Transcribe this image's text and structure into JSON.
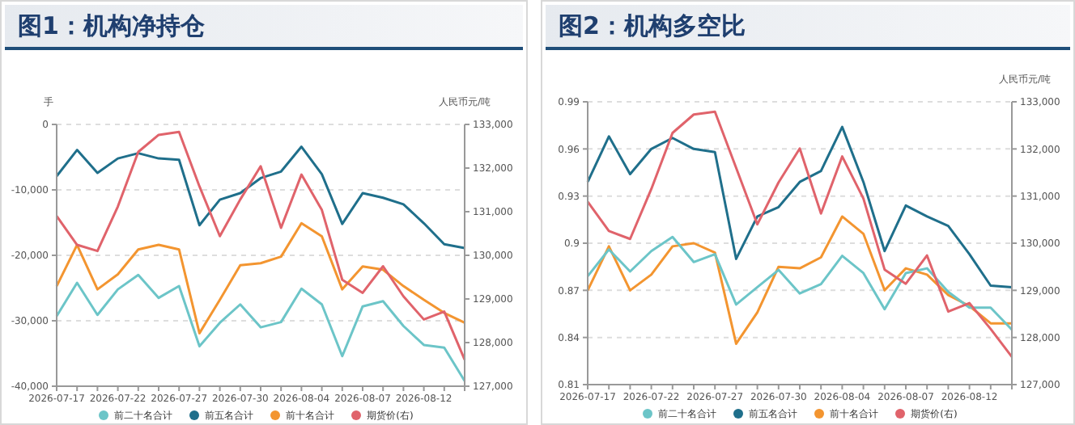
{
  "chart_data": [
    {
      "type": "line",
      "title": "图1：机构净持仓",
      "ylabel": "手",
      "y2label": "人民币元/吨",
      "categories": [
        "2026-07-17",
        null,
        null,
        "2026-07-22",
        null,
        null,
        "2026-07-27",
        null,
        null,
        "2026-07-30",
        null,
        null,
        "2026-08-04",
        null,
        null,
        "2026-08-07",
        null,
        null,
        "2026-08-12",
        null,
        null
      ],
      "series": [
        {
          "name": "前五名合计",
          "color": "#1f6f8b",
          "values": [
            -7900,
            -3900,
            -7400,
            -5200,
            -4400,
            -5200,
            -5400,
            -15400,
            -11500,
            -10500,
            -8200,
            -7200,
            -3400,
            -7600,
            -15200,
            -10500,
            -11200,
            -12200,
            -15100,
            -18300,
            -18900
          ]
        },
        {
          "name": "前十名合计",
          "color": "#f39530",
          "values": [
            -24700,
            -18400,
            -25200,
            -22900,
            -19100,
            -18400,
            -19100,
            -31900,
            -26800,
            -21500,
            -21200,
            -20200,
            -15100,
            -17100,
            -25200,
            -21700,
            -22200,
            -24700,
            -26800,
            -28800,
            -30300
          ]
        },
        {
          "name": "前二十名合计",
          "color": "#6cc5c8",
          "values": [
            -29300,
            -24200,
            -29100,
            -25200,
            -23000,
            -26500,
            -24700,
            -33900,
            -30300,
            -27500,
            -31000,
            -30200,
            -25100,
            -27500,
            -35400,
            -27800,
            -27000,
            -30800,
            -33700,
            -34100,
            -39200
          ]
        },
        {
          "name": "期货价(右)",
          "color": "#e0636b",
          "axis": "y2",
          "values": [
            130900,
            130240,
            130100,
            131120,
            132370,
            132760,
            132830,
            131580,
            130440,
            131280,
            132040,
            130630,
            131850,
            131040,
            129440,
            129140,
            129750,
            129060,
            128530,
            128710,
            127610
          ]
        }
      ],
      "ylim": [
        -40000,
        0
      ],
      "yticks": [
        {
          "value": -40000,
          "label": "-40,000"
        },
        {
          "value": -30000,
          "label": "-30,000"
        },
        {
          "value": -20000,
          "label": "-20,000"
        },
        {
          "value": -10000,
          "label": "-10,000"
        },
        0
      ],
      "y2lim": [
        127000,
        133000
      ],
      "y2ticks": [
        {
          "value": 127000,
          "label": "127,000"
        },
        {
          "value": 128000,
          "label": "128,000"
        },
        {
          "value": 129000,
          "label": "129,000"
        },
        {
          "value": 130000,
          "label": "130,000"
        },
        {
          "value": 131000,
          "label": "131,000"
        },
        {
          "value": 132000,
          "label": "132,000"
        },
        {
          "value": 133000,
          "label": "133,000"
        }
      ],
      "grid": "y",
      "legend": "bottom",
      "marker": "none",
      "line_style": "solid"
    },
    {
      "type": "line",
      "title": "图2：机构多空比",
      "y2label": "人民币元/吨",
      "categories": [
        "2026-07-17",
        null,
        null,
        "2026-07-22",
        null,
        null,
        "2026-07-27",
        null,
        null,
        "2026-07-30",
        null,
        null,
        "2026-08-04",
        null,
        null,
        "2026-08-07",
        null,
        null,
        "2026-08-12",
        null,
        null
      ],
      "series": [
        {
          "name": "前五名合计",
          "color": "#1f6f8b",
          "values": [
            0.939,
            0.968,
            0.944,
            0.96,
            0.967,
            0.96,
            0.958,
            0.89,
            0.917,
            0.923,
            0.939,
            0.946,
            0.974,
            0.939,
            0.895,
            0.924,
            0.917,
            0.911,
            0.893,
            0.873,
            0.872
          ]
        },
        {
          "name": "前十名合计",
          "color": "#f39530",
          "values": [
            0.87,
            0.898,
            0.87,
            0.88,
            0.898,
            0.9,
            0.894,
            0.836,
            0.856,
            0.885,
            0.884,
            0.891,
            0.917,
            0.906,
            0.87,
            0.884,
            0.88,
            0.867,
            0.86,
            0.849,
            0.849
          ]
        },
        {
          "name": "前二十名合计",
          "color": "#6cc5c8",
          "values": [
            0.879,
            0.896,
            0.882,
            0.895,
            0.904,
            0.888,
            0.893,
            0.861,
            0.872,
            0.883,
            0.868,
            0.874,
            0.892,
            0.881,
            0.858,
            0.881,
            0.884,
            0.869,
            0.859,
            0.859,
            0.845
          ]
        },
        {
          "name": "期货价(右)",
          "color": "#e0636b",
          "axis": "y2",
          "values": [
            130880,
            130260,
            130090,
            131150,
            132340,
            132730,
            132790,
            131600,
            130400,
            131290,
            132010,
            130630,
            131840,
            130950,
            129440,
            129140,
            129740,
            128550,
            128730,
            128180,
            127590
          ]
        }
      ],
      "ylim": [
        0.81,
        0.99
      ],
      "yticks": [
        0.81,
        0.84,
        0.87,
        0.9,
        0.93,
        0.96,
        0.99
      ],
      "y2lim": [
        127000,
        133000
      ],
      "y2ticks": [
        {
          "value": 127000,
          "label": "127,000"
        },
        {
          "value": 128000,
          "label": "128,000"
        },
        {
          "value": 129000,
          "label": "129,000"
        },
        {
          "value": 130000,
          "label": "130,000"
        },
        {
          "value": 131000,
          "label": "131,000"
        },
        {
          "value": 132000,
          "label": "132,000"
        },
        {
          "value": 133000,
          "label": "133,000"
        }
      ],
      "grid": "y",
      "legend": "bottom",
      "marker": "none",
      "line_style": "solid"
    }
  ]
}
